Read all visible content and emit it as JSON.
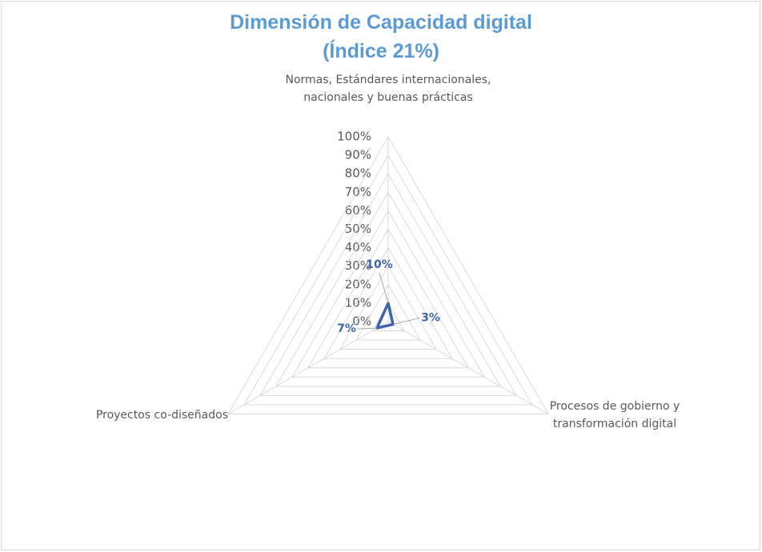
{
  "chart_data": {
    "type": "radar",
    "title": [
      "Dimensión de Capacidad digital",
      "(Índice 21%)"
    ],
    "categories": [
      "Normas, Estándares internacionales, nacionales y buenas prácticas",
      "Procesos de gobierno y transformación digital",
      "Proyectos co-diseñados"
    ],
    "values": [
      10,
      3,
      7
    ],
    "value_labels": [
      "10%",
      "3%",
      "7%"
    ],
    "color": "#3f64ad",
    "ylim": [
      0,
      100
    ],
    "yticks": [
      {
        "value": 0,
        "label": "0%"
      },
      {
        "value": 10,
        "label": "10%"
      },
      {
        "value": 20,
        "label": "20%"
      },
      {
        "value": 30,
        "label": "30%"
      },
      {
        "value": 40,
        "label": "40%"
      },
      {
        "value": 50,
        "label": "50%"
      },
      {
        "value": 60,
        "label": "60%"
      },
      {
        "value": 70,
        "label": "70%"
      },
      {
        "value": 80,
        "label": "80%"
      },
      {
        "value": 90,
        "label": "90%"
      },
      {
        "value": 100,
        "label": "100%"
      }
    ],
    "grid": true
  }
}
